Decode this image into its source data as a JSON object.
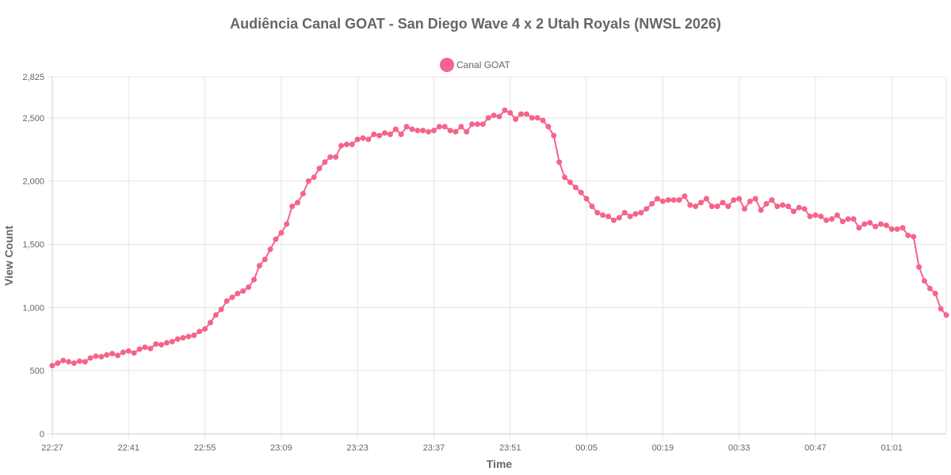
{
  "chart_data": {
    "type": "line",
    "title": "Audiência Canal GOAT - San Diego Wave 4 x 2 Utah Royals (NWSL 2026)",
    "xlabel": "Time",
    "ylabel": "View Count",
    "ylim": [
      0,
      2825
    ],
    "yticks": [
      0,
      500,
      1000,
      1500,
      2000,
      2500,
      2825
    ],
    "ytick_labels": [
      "0",
      "500",
      "1,000",
      "1,500",
      "2,000",
      "2,500",
      "2,825"
    ],
    "xticks": [
      "22:27",
      "22:41",
      "22:55",
      "23:09",
      "23:23",
      "23:37",
      "23:51",
      "00:05",
      "00:19",
      "00:33",
      "00:47",
      "01:01"
    ],
    "x_interval_minutes": 1,
    "grid": true,
    "legend_position": "top",
    "series": [
      {
        "name": "Canal GOAT",
        "color": "#f5648a",
        "values": [
          540,
          560,
          580,
          570,
          560,
          575,
          570,
          600,
          615,
          610,
          625,
          635,
          620,
          645,
          655,
          640,
          670,
          685,
          675,
          710,
          705,
          720,
          730,
          750,
          760,
          770,
          780,
          810,
          830,
          880,
          940,
          985,
          1050,
          1080,
          1110,
          1130,
          1160,
          1220,
          1330,
          1380,
          1460,
          1540,
          1590,
          1660,
          1800,
          1830,
          1900,
          2000,
          2030,
          2100,
          2150,
          2190,
          2190,
          2280,
          2290,
          2290,
          2330,
          2340,
          2330,
          2370,
          2360,
          2380,
          2370,
          2410,
          2370,
          2430,
          2410,
          2400,
          2400,
          2390,
          2400,
          2430,
          2430,
          2400,
          2390,
          2430,
          2390,
          2450,
          2450,
          2450,
          2500,
          2520,
          2510,
          2560,
          2540,
          2490,
          2530,
          2530,
          2500,
          2500,
          2480,
          2430,
          2360,
          2150,
          2030,
          1990,
          1950,
          1910,
          1860,
          1800,
          1750,
          1730,
          1720,
          1690,
          1710,
          1750,
          1720,
          1740,
          1750,
          1780,
          1820,
          1860,
          1840,
          1850,
          1850,
          1850,
          1880,
          1810,
          1800,
          1830,
          1860,
          1800,
          1800,
          1830,
          1800,
          1850,
          1860,
          1780,
          1840,
          1860,
          1770,
          1820,
          1850,
          1800,
          1810,
          1800,
          1760,
          1790,
          1780,
          1720,
          1730,
          1720,
          1690,
          1700,
          1730,
          1680,
          1700,
          1700,
          1630,
          1660,
          1670,
          1640,
          1660,
          1650,
          1620,
          1620,
          1630,
          1570,
          1560,
          1320,
          1210,
          1150,
          1110,
          990,
          940
        ]
      }
    ]
  }
}
